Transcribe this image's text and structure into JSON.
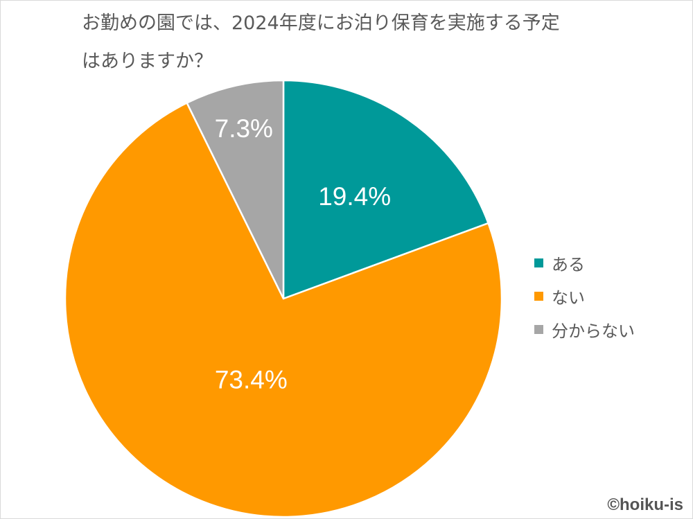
{
  "chart_data": {
    "type": "pie",
    "title": "お勤めの園では、2024年度にお泊り保育を実施する予定はありますか？",
    "title_lines": [
      "お勤めの園では、2024年度にお泊り保育を実施する予定",
      "はありますか？"
    ],
    "categories": [
      "ある",
      "ない",
      "分からない"
    ],
    "values": [
      19.4,
      73.4,
      7.3
    ],
    "data_labels": [
      "19.4%",
      "73.4%",
      "7.3%"
    ],
    "colors": [
      "#009999",
      "#FF9900",
      "#A6A6A6"
    ],
    "start_angle": "12 o'clock",
    "direction": "clockwise",
    "legend_position": "right"
  },
  "watermark": "©hoiku-is"
}
